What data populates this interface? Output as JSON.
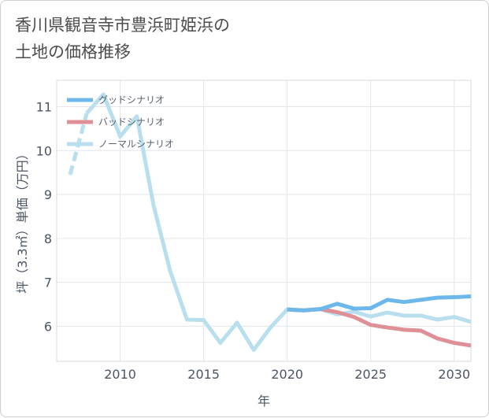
{
  "chart_data": {
    "type": "line",
    "title": "香川県観音寺市豊浜町姫浜の\n土地の価格推移",
    "xlabel": "年",
    "ylabel": "坪（3.3㎡）単価（万円）",
    "xlim": [
      2006.2,
      2031
    ],
    "ylim": [
      5.2,
      11.6
    ],
    "xticks": [
      2010,
      2015,
      2020,
      2025,
      2030
    ],
    "yticks": [
      6,
      7,
      8,
      9,
      10,
      11
    ],
    "grid": true,
    "legend_position": "top-left",
    "series": [
      {
        "name": "グッドシナリオ",
        "color": "#6cb8ec",
        "x": [
          2020,
          2021,
          2022,
          2023,
          2024,
          2025,
          2026,
          2027,
          2028,
          2029,
          2030,
          2031
        ],
        "y": [
          6.38,
          6.36,
          6.39,
          6.51,
          6.4,
          6.41,
          6.6,
          6.55,
          6.6,
          6.65,
          6.66,
          6.68
        ]
      },
      {
        "name": "バッドシナリオ",
        "color": "#df8f96",
        "x": [
          2020,
          2021,
          2022,
          2023,
          2024,
          2025,
          2026,
          2027,
          2028,
          2029,
          2030,
          2031
        ],
        "y": [
          6.38,
          6.36,
          6.39,
          6.32,
          6.21,
          6.03,
          5.97,
          5.92,
          5.9,
          5.72,
          5.62,
          5.56
        ]
      },
      {
        "name": "ノーマルシナリオ",
        "color": "#b9dfee",
        "x": [
          2007,
          2008,
          2009,
          2010,
          2011,
          2012,
          2013,
          2014,
          2015,
          2016,
          2017,
          2018,
          2019,
          2020,
          2021,
          2022,
          2023,
          2024,
          2025,
          2026,
          2027,
          2028,
          2029,
          2030,
          2031
        ],
        "y": [
          9.45,
          10.85,
          11.28,
          10.32,
          10.78,
          8.75,
          7.25,
          6.15,
          6.14,
          5.62,
          6.08,
          5.46,
          5.97,
          6.38,
          6.36,
          6.39,
          6.27,
          6.33,
          6.22,
          6.31,
          6.24,
          6.24,
          6.15,
          6.21,
          6.1
        ],
        "dashed_until": 2008
      }
    ]
  }
}
